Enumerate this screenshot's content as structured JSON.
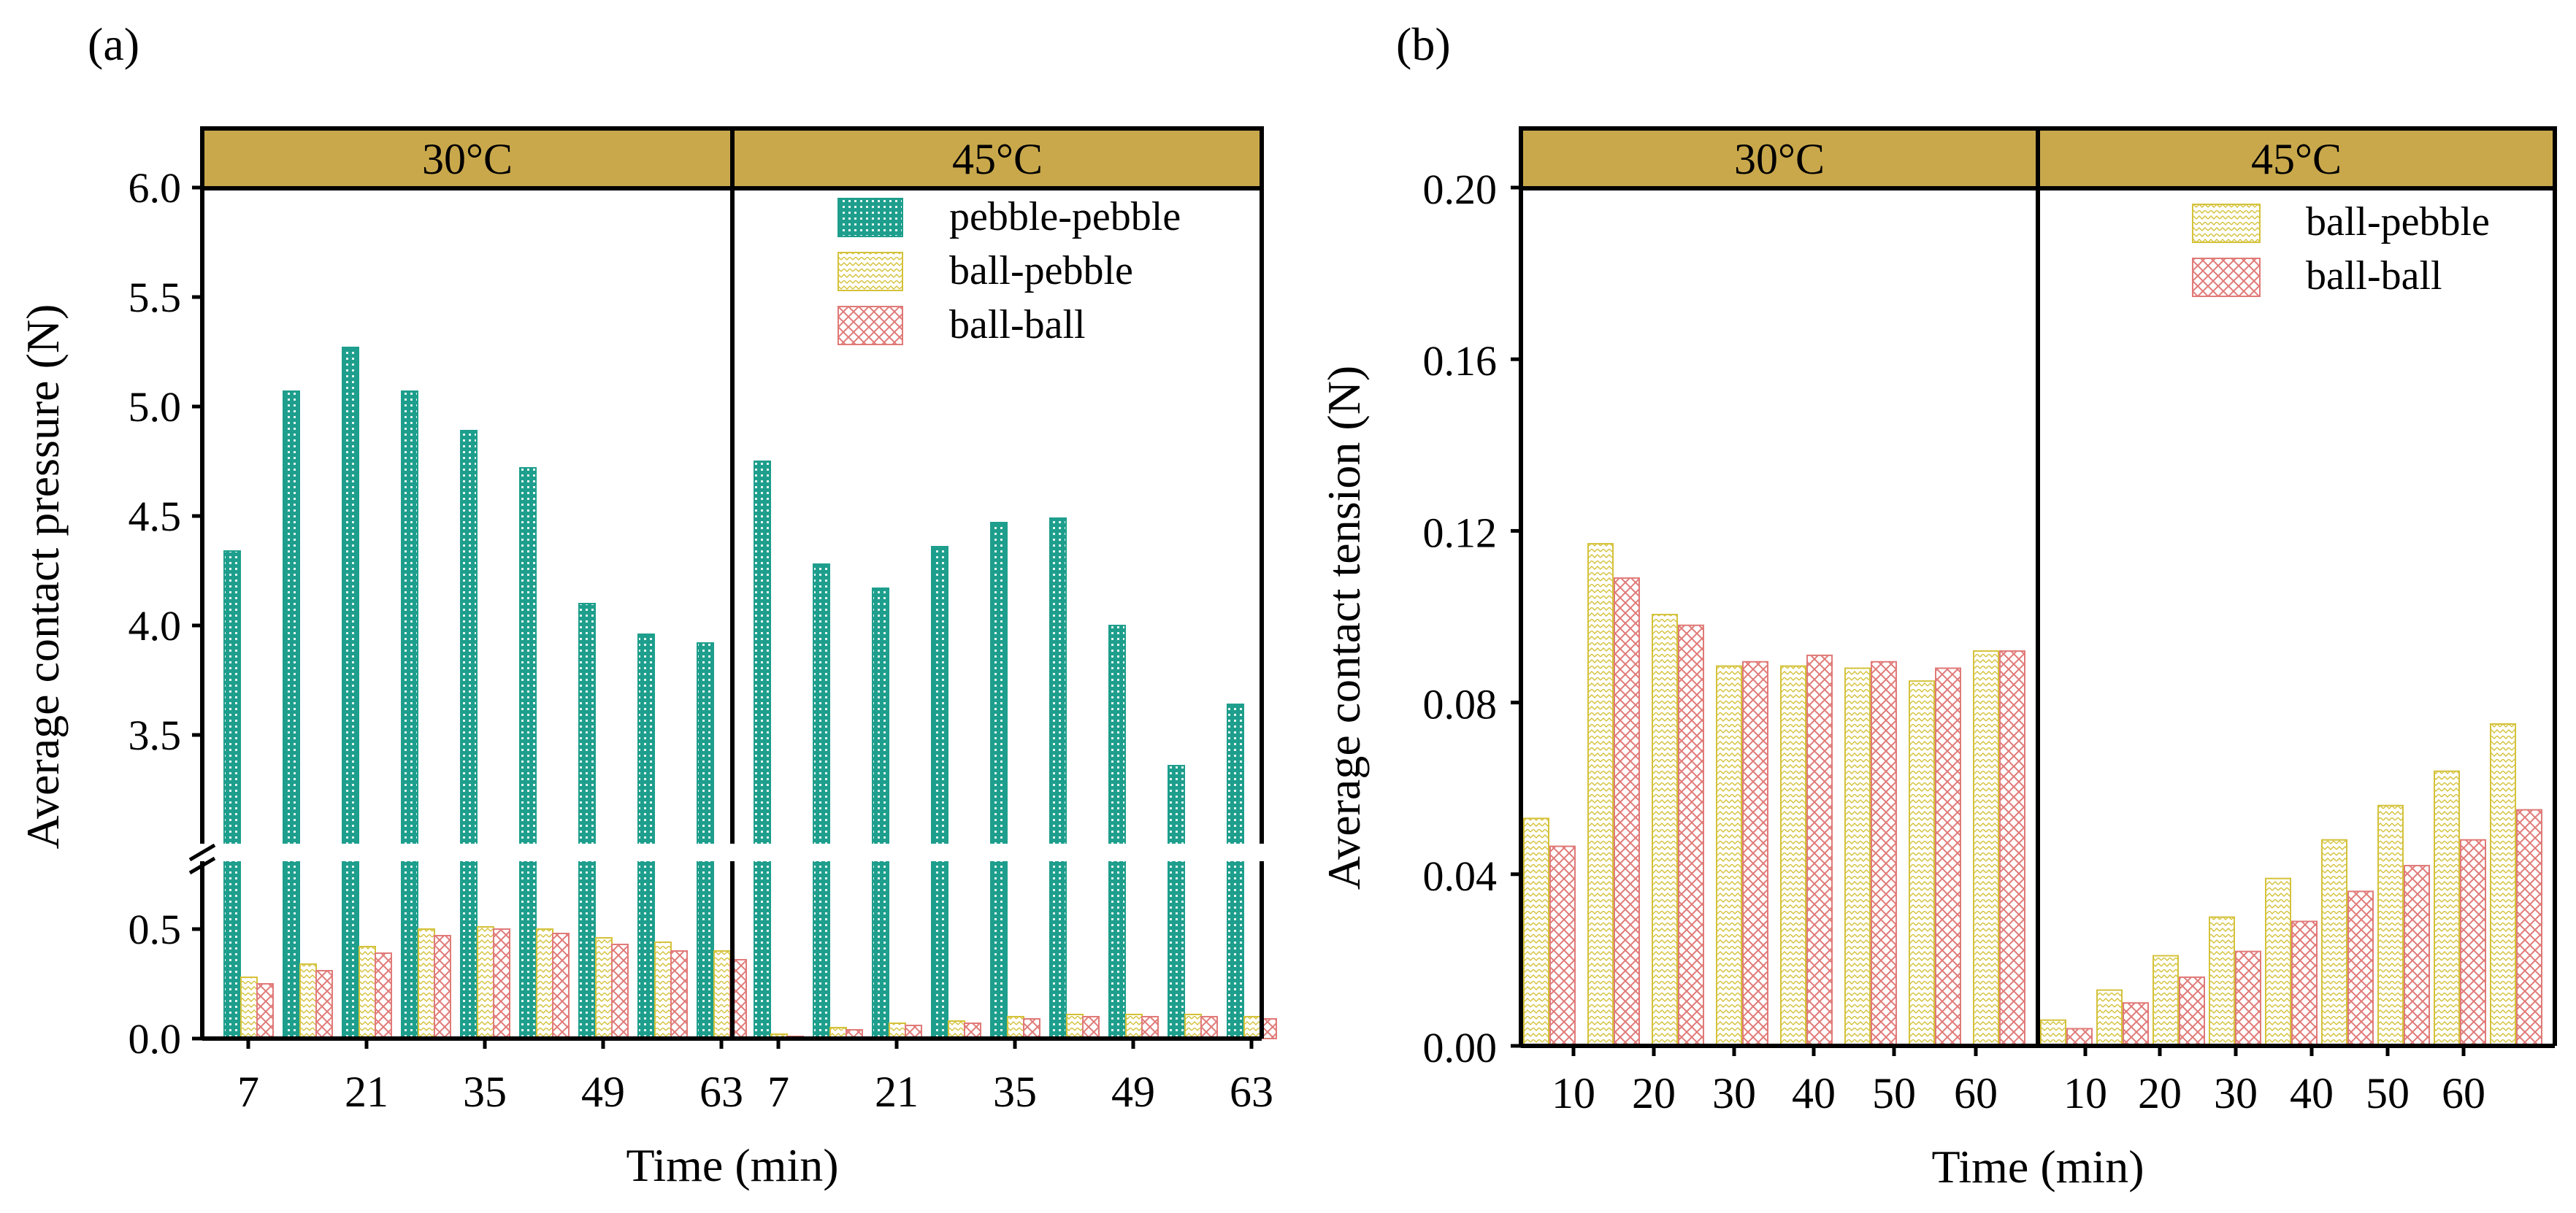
{
  "figure": {
    "panel_a_label": "(a)",
    "panel_b_label": "(b)",
    "colors": {
      "strip": "#c9a84c",
      "pebble_pebble": "#1e9e8c",
      "ball_pebble": "#d4c23a",
      "ball_ball": "#e07a78"
    }
  },
  "chart_data": [
    {
      "type": "bar",
      "panel": "(a)",
      "facets": [
        "30°C",
        "45°C"
      ],
      "xlabel": "Time (min)",
      "ylabel": "Average contact pressure (N)",
      "x_ticks": [
        "7",
        "21",
        "35",
        "49",
        "63"
      ],
      "y_axis": {
        "broken": true,
        "lower_range": [
          0,
          0.8
        ],
        "upper_range": [
          3.0,
          6.0
        ],
        "lower_ticks": [
          "0.0",
          "0.5"
        ],
        "upper_ticks": [
          "3.5",
          "4.0",
          "4.5",
          "5.0",
          "5.5",
          "6.0"
        ]
      },
      "categories": [
        7,
        14,
        21,
        28,
        35,
        42,
        49,
        56,
        63
      ],
      "legend": [
        "pebble-pebble",
        "ball-pebble",
        "ball-ball"
      ],
      "legend_position": "top-right",
      "series": {
        "30°C": [
          {
            "name": "pebble-pebble",
            "values": [
              4.34,
              5.07,
              5.27,
              5.07,
              4.89,
              4.72,
              4.1,
              3.96,
              3.92
            ]
          },
          {
            "name": "ball-pebble",
            "values": [
              0.28,
              0.34,
              0.42,
              0.5,
              0.51,
              0.5,
              0.46,
              0.44,
              0.4
            ]
          },
          {
            "name": "ball-ball",
            "values": [
              0.25,
              0.31,
              0.39,
              0.47,
              0.5,
              0.48,
              0.43,
              0.4,
              0.36
            ]
          }
        ],
        "45°C": [
          {
            "name": "pebble-pebble",
            "values": [
              4.75,
              4.28,
              4.17,
              4.36,
              4.47,
              4.49,
              4.0,
              3.36,
              3.64
            ]
          },
          {
            "name": "ball-pebble",
            "values": [
              0.02,
              0.05,
              0.07,
              0.08,
              0.1,
              0.11,
              0.11,
              0.11,
              0.1
            ]
          },
          {
            "name": "ball-ball",
            "values": [
              0.01,
              0.04,
              0.06,
              0.07,
              0.09,
              0.1,
              0.1,
              0.1,
              0.09
            ]
          }
        ]
      }
    },
    {
      "type": "bar",
      "panel": "(b)",
      "facets": [
        "30°C",
        "45°C"
      ],
      "xlabel": "Time (min)",
      "ylabel": "Average contact tension (N)",
      "x_ticks": [
        "10",
        "20",
        "30",
        "40",
        "50",
        "60"
      ],
      "ylim": [
        0,
        0.2
      ],
      "y_ticks": [
        "0.00",
        "0.04",
        "0.08",
        "0.12",
        "0.16",
        "0.20"
      ],
      "categories": [
        5,
        10,
        15,
        20,
        25,
        30,
        35,
        40,
        45,
        50,
        55,
        60
      ],
      "legend": [
        "ball-pebble",
        "ball-ball"
      ],
      "legend_position": "top-right",
      "series": {
        "30°C": [
          {
            "name": "ball-pebble",
            "values": [
              0.053,
              0.117,
              0.1005,
              0.0885,
              0.0885,
              0.088,
              0.085,
              0.092
            ]
          },
          {
            "name": "ball-ball",
            "values": [
              0.0465,
              0.109,
              0.098,
              0.0895,
              0.091,
              0.0895,
              0.088,
              0.092
            ]
          }
        ],
        "45°C": [
          {
            "name": "ball-pebble",
            "values": [
              0.006,
              0.013,
              0.021,
              0.03,
              0.039,
              0.048,
              0.056,
              0.064,
              0.075
            ]
          },
          {
            "name": "ball-ball",
            "values": [
              0.004,
              0.01,
              0.016,
              0.022,
              0.029,
              0.036,
              0.042,
              0.048,
              0.055
            ]
          }
        ]
      }
    }
  ]
}
